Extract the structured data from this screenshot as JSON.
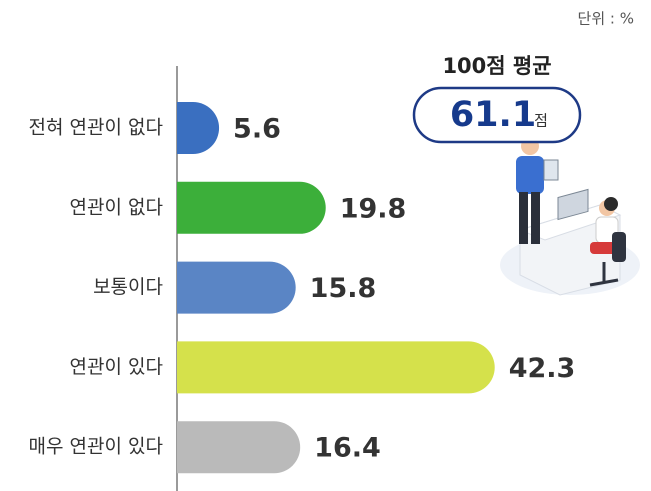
{
  "chart_data": {
    "type": "bar",
    "orientation": "horizontal",
    "unit_label": "단위 : %",
    "categories": [
      "전혀 연관이 없다",
      "연관이 없다",
      "보통이다",
      "연관이 있다",
      "매우 연관이 있다"
    ],
    "values": [
      5.6,
      19.8,
      15.8,
      42.3,
      16.4
    ],
    "colors": [
      "#3a6fc0",
      "#3caf3a",
      "#5a85c5",
      "#d5e14b",
      "#bababa"
    ],
    "xlim": [
      0,
      45
    ],
    "annotation": {
      "title": "100점 평균",
      "value": 61.1,
      "unit": "점"
    }
  }
}
